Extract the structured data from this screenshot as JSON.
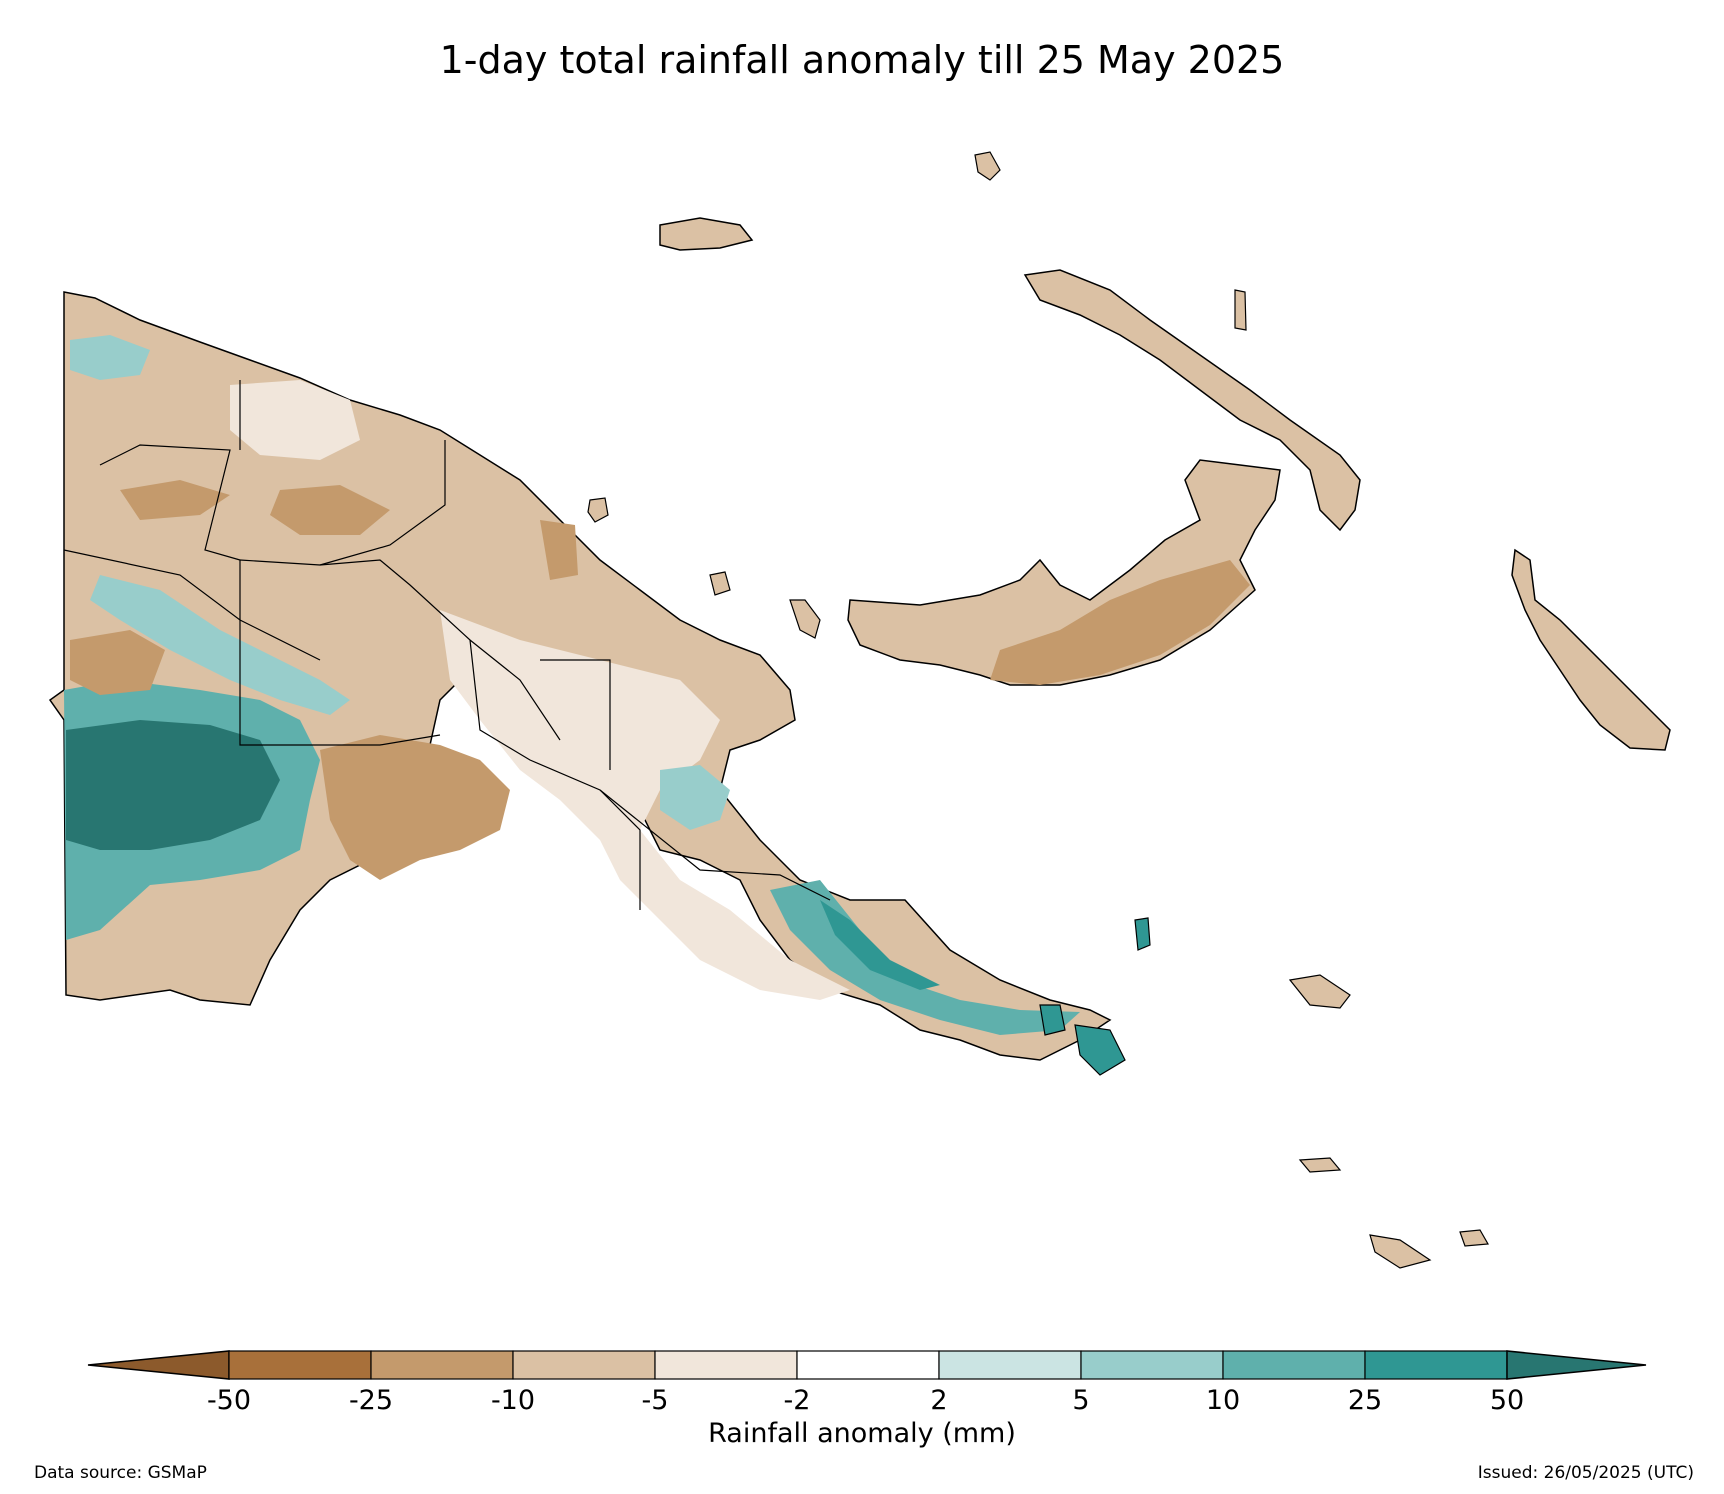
{
  "title": "1-day total rainfall anomaly till 25 May 2025",
  "colorbar": {
    "title": "Rainfall anomaly (mm)",
    "ticks": [
      "-50",
      "-25",
      "-10",
      "-5",
      "-2",
      "2",
      "5",
      "10",
      "25",
      "50"
    ],
    "colors": [
      "#8c5a2c",
      "#a8703a",
      "#c49a6c",
      "#dbc1a4",
      "#f1e6db",
      "#ffffff",
      "#cbe4e3",
      "#98cdcb",
      "#5fb0ac",
      "#2f9793",
      "#287671"
    ]
  },
  "footer": {
    "source": "Data source: GSMaP",
    "issued": "Issued: 26/05/2025 (UTC)"
  }
}
